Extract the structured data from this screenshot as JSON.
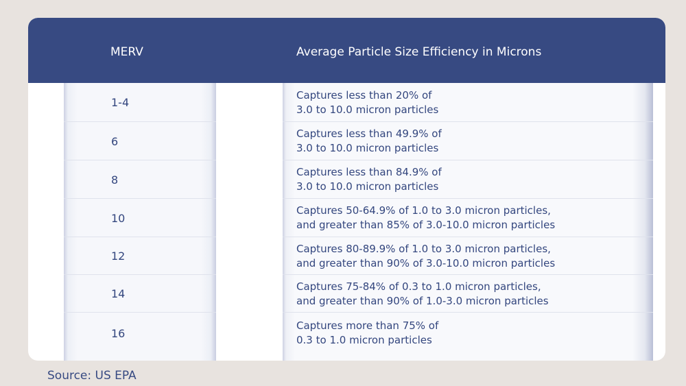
{
  "table": {
    "headers": {
      "merv": "MERV",
      "efficiency": "Average Particle Size Efficiency in Microns"
    },
    "rows": [
      {
        "merv": "1-4",
        "line1": "Captures less than 20% of",
        "line2": "3.0 to 10.0 micron particles"
      },
      {
        "merv": "6",
        "line1": "Captures less than 49.9% of",
        "line2": "3.0 to 10.0 micron particles"
      },
      {
        "merv": "8",
        "line1": "Captures less than 84.9% of",
        "line2": "3.0 to 10.0 micron particles"
      },
      {
        "merv": "10",
        "line1": "Captures 50-64.9% of 1.0 to 3.0 micron particles,",
        "line2": "and greater than 85% of 3.0-10.0 micron particles"
      },
      {
        "merv": "12",
        "line1": "Captures 80-89.9% of 1.0 to 3.0 micron particles,",
        "line2": "and greater than 90% of 3.0-10.0 micron particles"
      },
      {
        "merv": "14",
        "line1": "Captures 75-84% of 0.3 to 1.0 micron particles,",
        "line2": "and greater than 90% of 1.0-3.0 micron particles"
      },
      {
        "merv": "16",
        "line1": "Captures more than 75% of",
        "line2": "0.3 to 1.0 micron particles"
      }
    ]
  },
  "source": "Source: US EPA",
  "colors": {
    "header_bg": "#374a82",
    "text": "#33467e",
    "page_bg": "#e8e3df"
  }
}
